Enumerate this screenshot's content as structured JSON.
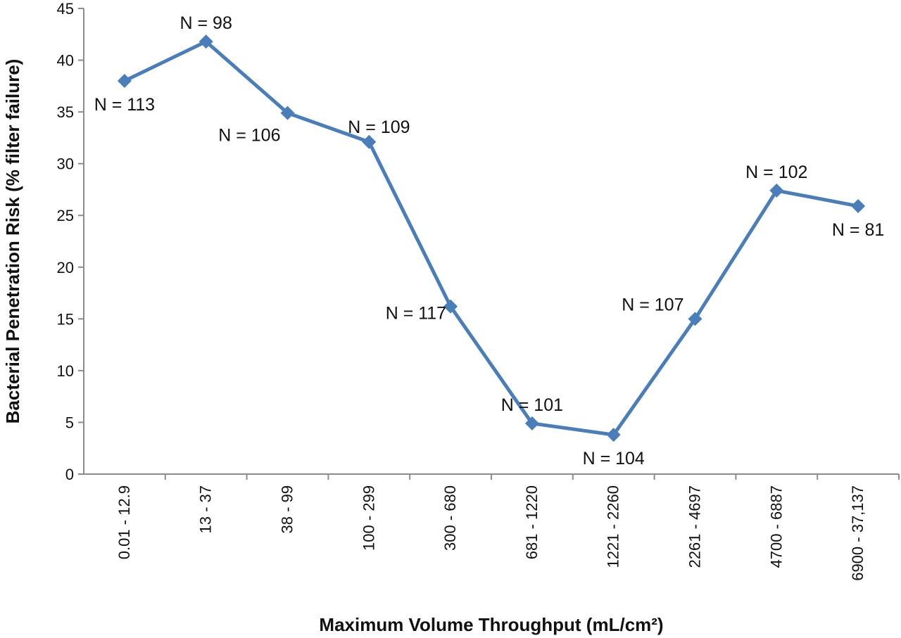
{
  "chart_data": {
    "type": "line",
    "xlabel": "Maximum Volume Throughput (mL/cm²)",
    "ylabel": "Bacterial Penetration Risk (% filter failure)",
    "ylim": [
      0,
      45
    ],
    "yticks": [
      0,
      5,
      10,
      15,
      20,
      25,
      30,
      35,
      40,
      45
    ],
    "categories": [
      "0.01 - 12.9",
      "13 - 37",
      "38 - 99",
      "100 - 299",
      "300 - 680",
      "681 - 1220",
      "1221 - 2260",
      "2261 - 4697",
      "4700 - 6887",
      "6900 - 37,137"
    ],
    "series": [
      {
        "values": [
          38.0,
          41.8,
          34.9,
          32.1,
          16.2,
          4.9,
          3.8,
          15.0,
          27.4,
          25.9
        ],
        "point_labels": [
          "N = 113",
          "N = 98",
          "N = 106",
          "N = 109",
          "N = 117",
          "N = 101",
          "N = 104",
          "N = 107",
          "N = 102",
          "N = 81"
        ],
        "label_positions": [
          "below",
          "above",
          "below-left",
          "above-right",
          "left",
          "above",
          "below",
          "above-left",
          "above",
          "below"
        ]
      }
    ],
    "line_color": "#4a7ebb",
    "marker": "diamond",
    "grid": false,
    "legend": "none"
  }
}
